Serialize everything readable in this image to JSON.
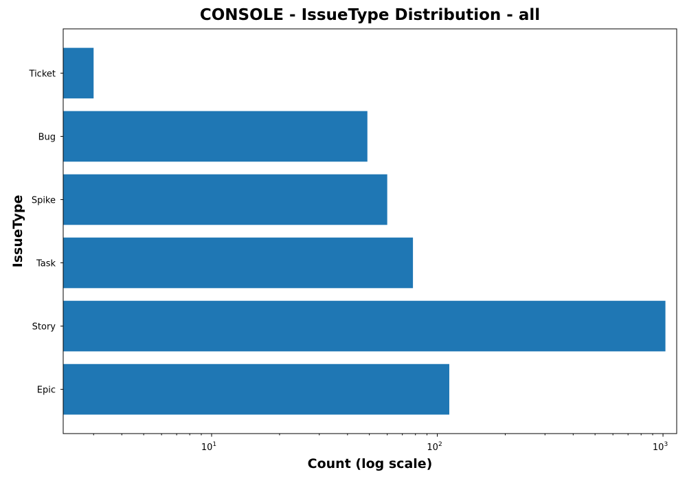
{
  "chart_data": {
    "type": "bar",
    "orientation": "horizontal",
    "title": "CONSOLE - IssueType Distribution - all",
    "xlabel": "Count (log scale)",
    "ylabel": "IssueType",
    "x_scale": "log",
    "xlim": [
      2.2,
      1150
    ],
    "categories": [
      "Ticket",
      "Bug",
      "Spike",
      "Task",
      "Story",
      "Epic"
    ],
    "values": [
      3,
      49,
      60,
      78,
      1025,
      113
    ],
    "x_ticks": [
      {
        "value": 10,
        "base": "10",
        "exp": "1"
      },
      {
        "value": 100,
        "base": "10",
        "exp": "2"
      },
      {
        "value": 1000,
        "base": "10",
        "exp": "3"
      }
    ],
    "bar_color": "#1f77b4",
    "grid": false,
    "legend": false
  }
}
